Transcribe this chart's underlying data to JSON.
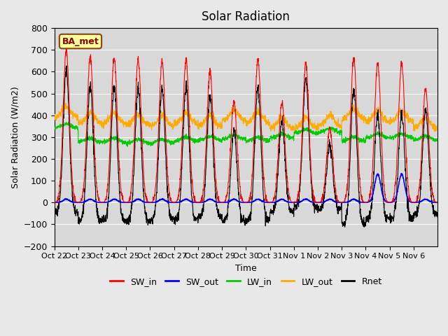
{
  "title": "Solar Radiation",
  "xlabel": "Time",
  "ylabel": "Solar Radiation (W/m2)",
  "ylim": [
    -200,
    800
  ],
  "yticks": [
    -200,
    -100,
    0,
    100,
    200,
    300,
    400,
    500,
    600,
    700,
    800
  ],
  "xtick_labels": [
    "Oct 22",
    "Oct 23",
    "Oct 24",
    "Oct 25",
    "Oct 26",
    "Oct 27",
    "Oct 28",
    "Oct 29",
    "Oct 30",
    "Oct 31",
    "Nov 1",
    "Nov 2",
    "Nov 3",
    "Nov 4",
    "Nov 5",
    "Nov 6"
  ],
  "station_label": "BA_met",
  "colors": {
    "SW_in": "#ff0000",
    "SW_out": "#0000ff",
    "LW_in": "#00cc00",
    "LW_out": "#ffaa00",
    "Rnet": "#000000"
  },
  "background_color": "#e8e8e8",
  "plot_bg_color": "#d8d8d8",
  "grid_color": "#ffffff",
  "num_days": 16,
  "points_per_day": 144
}
